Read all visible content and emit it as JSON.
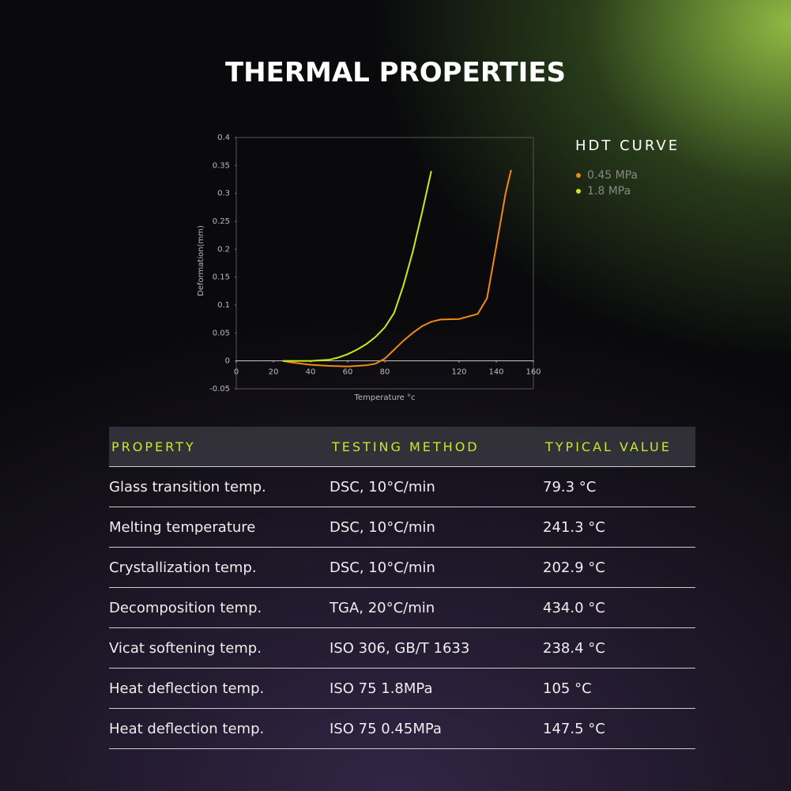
{
  "header": {
    "title": "THERMAL PROPERTIES"
  },
  "chart_data": {
    "type": "line",
    "xlabel": "Temperature  °c",
    "ylabel": "Deformation(mm)",
    "legend_title": "HDT CURVE",
    "xlim": [
      0,
      160
    ],
    "xticks": [
      0,
      20,
      40,
      60,
      80,
      120,
      140,
      160
    ],
    "ylim": [
      -0.05,
      0.4
    ],
    "yticks": [
      -0.05,
      0,
      0.05,
      0.1,
      0.15,
      0.2,
      0.25,
      0.3,
      0.35,
      0.4
    ],
    "series": [
      {
        "name": "0.45 MPa",
        "color": "#f08a12",
        "x": [
          25,
          30,
          40,
          50,
          60,
          70,
          75,
          80,
          85,
          90,
          95,
          100,
          105,
          110,
          120,
          130,
          135,
          140,
          145,
          148
        ],
        "values": [
          0,
          -0.003,
          -0.007,
          -0.009,
          -0.01,
          -0.008,
          -0.005,
          0.004,
          0.02,
          0.036,
          0.05,
          0.062,
          0.07,
          0.074,
          0.075,
          0.084,
          0.112,
          0.205,
          0.3,
          0.342
        ]
      },
      {
        "name": "1.8 MPa",
        "color": "#c8ea1e",
        "x": [
          25,
          30,
          40,
          50,
          55,
          60,
          65,
          70,
          75,
          80,
          85,
          90,
          95,
          100,
          105
        ],
        "values": [
          0,
          0,
          0,
          0.002,
          0.006,
          0.012,
          0.02,
          0.03,
          0.043,
          0.06,
          0.086,
          0.135,
          0.195,
          0.265,
          0.34
        ]
      }
    ]
  },
  "table": {
    "header": [
      "PROPERTY",
      "TESTING METHOD",
      "TYPICAL VALUE"
    ],
    "rows": [
      [
        "Glass transition temp.",
        "DSC, 10°C/min",
        "79.3 °C"
      ],
      [
        "Melting temperature",
        "DSC, 10°C/min",
        "241.3 °C"
      ],
      [
        "Crystallization temp.",
        "DSC, 10°C/min",
        "202.9 °C"
      ],
      [
        "Decomposition temp.",
        "TGA, 20°C/min",
        "434.0 °C"
      ],
      [
        "Vicat softening temp.",
        "ISO 306, GB/T 1633",
        "238.4 °C"
      ],
      [
        "Heat deflection temp.",
        "ISO 75 1.8MPa",
        "105 °C"
      ],
      [
        "Heat deflection temp.",
        "ISO 75 0.45MPa",
        "147.5 °C"
      ]
    ]
  }
}
